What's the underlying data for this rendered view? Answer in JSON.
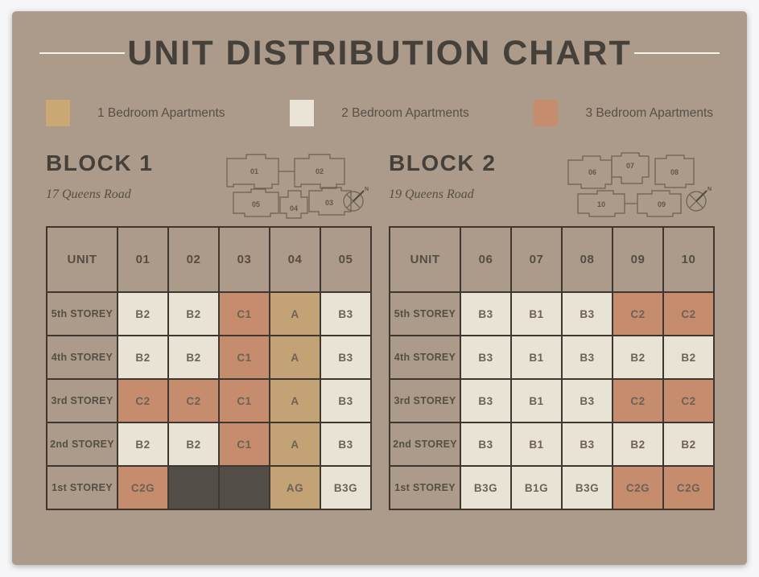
{
  "title": "UNIT DISTRIBUTION CHART",
  "compass_label": "N",
  "colors": {
    "background": "#ac9b8a",
    "frame": "#ffffff",
    "table_border": "#3e372f",
    "one_bedroom": "#c3a376",
    "two_bedroom": "#e9e3d6",
    "three_bedroom": "#c58c6d",
    "empty_cell": "#534d47",
    "title_text": "#46403a"
  },
  "legend": [
    {
      "label": "1 Bedroom Apartments",
      "type": "1br",
      "color": "#c9a873"
    },
    {
      "label": "2 Bedroom Apartments",
      "type": "2br",
      "color": "#eae4d7"
    },
    {
      "label": "3 Bedroom Apartments",
      "type": "3br",
      "color": "#c58c6d"
    }
  ],
  "blocks": [
    {
      "name": "BLOCK 1",
      "address": "17 Queens Road",
      "unit_header": "UNIT",
      "columns": [
        "01",
        "02",
        "03",
        "04",
        "05"
      ],
      "plan_units": [
        "01",
        "02",
        "05",
        "04",
        "03"
      ],
      "rows": [
        {
          "storey": "5th STOREY",
          "cells": [
            {
              "label": "B2",
              "type": "2br"
            },
            {
              "label": "B2",
              "type": "2br"
            },
            {
              "label": "C1",
              "type": "3br"
            },
            {
              "label": "A",
              "type": "1br"
            },
            {
              "label": "B3",
              "type": "2br"
            }
          ]
        },
        {
          "storey": "4th STOREY",
          "cells": [
            {
              "label": "B2",
              "type": "2br"
            },
            {
              "label": "B2",
              "type": "2br"
            },
            {
              "label": "C1",
              "type": "3br"
            },
            {
              "label": "A",
              "type": "1br"
            },
            {
              "label": "B3",
              "type": "2br"
            }
          ]
        },
        {
          "storey": "3rd STOREY",
          "cells": [
            {
              "label": "C2",
              "type": "3br"
            },
            {
              "label": "C2",
              "type": "3br"
            },
            {
              "label": "C1",
              "type": "3br"
            },
            {
              "label": "A",
              "type": "1br"
            },
            {
              "label": "B3",
              "type": "2br"
            }
          ]
        },
        {
          "storey": "2nd STOREY",
          "cells": [
            {
              "label": "B2",
              "type": "2br"
            },
            {
              "label": "B2",
              "type": "2br"
            },
            {
              "label": "C1",
              "type": "3br"
            },
            {
              "label": "A",
              "type": "1br"
            },
            {
              "label": "B3",
              "type": "2br"
            }
          ]
        },
        {
          "storey": "1st STOREY",
          "cells": [
            {
              "label": "C2G",
              "type": "3br"
            },
            {
              "label": "",
              "type": "empty"
            },
            {
              "label": "",
              "type": "empty"
            },
            {
              "label": "AG",
              "type": "1br"
            },
            {
              "label": "B3G",
              "type": "2br"
            }
          ]
        }
      ]
    },
    {
      "name": "BLOCK 2",
      "address": "19 Queens Road",
      "unit_header": "UNIT",
      "columns": [
        "06",
        "07",
        "08",
        "09",
        "10"
      ],
      "plan_units": [
        "06",
        "07",
        "08",
        "10",
        "09"
      ],
      "rows": [
        {
          "storey": "5th STOREY",
          "cells": [
            {
              "label": "B3",
              "type": "2br"
            },
            {
              "label": "B1",
              "type": "2br"
            },
            {
              "label": "B3",
              "type": "2br"
            },
            {
              "label": "C2",
              "type": "3br"
            },
            {
              "label": "C2",
              "type": "3br"
            }
          ]
        },
        {
          "storey": "4th STOREY",
          "cells": [
            {
              "label": "B3",
              "type": "2br"
            },
            {
              "label": "B1",
              "type": "2br"
            },
            {
              "label": "B3",
              "type": "2br"
            },
            {
              "label": "B2",
              "type": "2br"
            },
            {
              "label": "B2",
              "type": "2br"
            }
          ]
        },
        {
          "storey": "3rd STOREY",
          "cells": [
            {
              "label": "B3",
              "type": "2br"
            },
            {
              "label": "B1",
              "type": "2br"
            },
            {
              "label": "B3",
              "type": "2br"
            },
            {
              "label": "C2",
              "type": "3br"
            },
            {
              "label": "C2",
              "type": "3br"
            }
          ]
        },
        {
          "storey": "2nd STOREY",
          "cells": [
            {
              "label": "B3",
              "type": "2br"
            },
            {
              "label": "B1",
              "type": "2br"
            },
            {
              "label": "B3",
              "type": "2br"
            },
            {
              "label": "B2",
              "type": "2br"
            },
            {
              "label": "B2",
              "type": "2br"
            }
          ]
        },
        {
          "storey": "1st STOREY",
          "cells": [
            {
              "label": "B3G",
              "type": "2br"
            },
            {
              "label": "B1G",
              "type": "2br"
            },
            {
              "label": "B3G",
              "type": "2br"
            },
            {
              "label": "C2G",
              "type": "3br"
            },
            {
              "label": "C2G",
              "type": "3br"
            }
          ]
        }
      ]
    }
  ],
  "chart_data": [
    {
      "type": "table",
      "title": "BLOCK 1 — 17 Queens Road",
      "columns": [
        "UNIT",
        "01",
        "02",
        "03",
        "04",
        "05"
      ],
      "rows": [
        [
          "5th STOREY",
          "B2",
          "B2",
          "C1",
          "A",
          "B3"
        ],
        [
          "4th STOREY",
          "B2",
          "B2",
          "C1",
          "A",
          "B3"
        ],
        [
          "3rd STOREY",
          "C2",
          "C2",
          "C1",
          "A",
          "B3"
        ],
        [
          "2nd STOREY",
          "B2",
          "B2",
          "C1",
          "A",
          "B3"
        ],
        [
          "1st STOREY",
          "C2G",
          "",
          "",
          "AG",
          "B3G"
        ]
      ],
      "legend": [
        "1 Bedroom Apartments",
        "2 Bedroom Apartments",
        "3 Bedroom Apartments"
      ]
    },
    {
      "type": "table",
      "title": "BLOCK 2 — 19 Queens Road",
      "columns": [
        "UNIT",
        "06",
        "07",
        "08",
        "09",
        "10"
      ],
      "rows": [
        [
          "5th STOREY",
          "B3",
          "B1",
          "B3",
          "C2",
          "C2"
        ],
        [
          "4th STOREY",
          "B3",
          "B1",
          "B3",
          "B2",
          "B2"
        ],
        [
          "3rd STOREY",
          "B3",
          "B1",
          "B3",
          "C2",
          "C2"
        ],
        [
          "2nd STOREY",
          "B3",
          "B1",
          "B3",
          "B2",
          "B2"
        ],
        [
          "1st STOREY",
          "B3G",
          "B1G",
          "B3G",
          "C2G",
          "C2G"
        ]
      ],
      "legend": [
        "1 Bedroom Apartments",
        "2 Bedroom Apartments",
        "3 Bedroom Apartments"
      ]
    }
  ]
}
